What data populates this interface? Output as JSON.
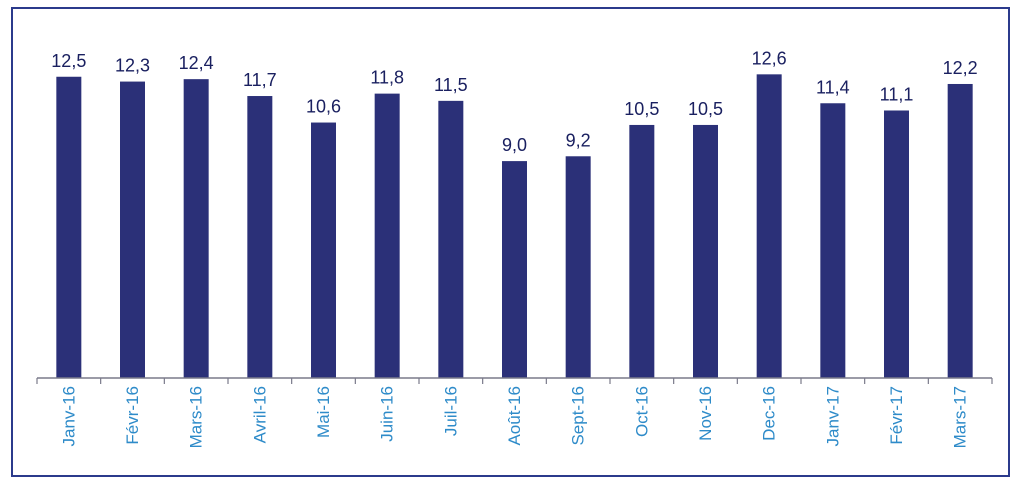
{
  "chart_data": {
    "type": "bar",
    "categories": [
      "Janv-16",
      "Févr-16",
      "Mars-16",
      "Avril-16",
      "Mai-16",
      "Juin-16",
      "Juil-16",
      "Août-16",
      "Sept-16",
      "Oct-16",
      "Nov-16",
      "Dec-16",
      "Janv-17",
      "Févr-17",
      "Mars-17"
    ],
    "values": [
      12.5,
      12.3,
      12.4,
      11.7,
      10.6,
      11.8,
      11.5,
      9.0,
      9.2,
      10.5,
      10.5,
      12.6,
      11.4,
      11.1,
      12.2
    ],
    "value_labels": [
      "12,5",
      "12,3",
      "12,4",
      "11,7",
      "10,6",
      "11,8",
      "11,5",
      "9,0",
      "9,2",
      "10,5",
      "10,5",
      "12,6",
      "11,4",
      "11,1",
      "12,2"
    ],
    "title": "",
    "xlabel": "",
    "ylabel": "",
    "ylim": [
      0,
      14.5
    ],
    "grid": false,
    "bar_color": "#2b3078",
    "label_color": "#1a2060",
    "tick_color": "#2e8bc9",
    "frame_color": "#2b3a8c"
  }
}
